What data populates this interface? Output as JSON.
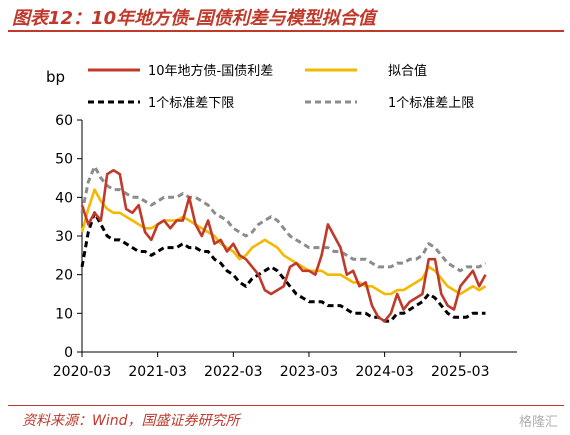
{
  "figure": {
    "title": "图表12：10年地方债-国债利差与模型拟合值",
    "source": "资料来源：Wind，国盛证券研究所",
    "watermark": "格隆汇"
  },
  "chart_data": {
    "type": "line",
    "ylabel": "bp",
    "ylim": [
      0,
      60
    ],
    "yticks": [
      0,
      10,
      20,
      30,
      40,
      50,
      60
    ],
    "xticks": [
      "2020-03",
      "2021-03",
      "2022-03",
      "2023-03",
      "2024-03",
      "2025-03"
    ],
    "xrange_index": [
      0,
      69
    ],
    "grid": false,
    "legend_position": "top",
    "series": [
      {
        "name": "10年地方债-国债利差",
        "color": "#c0392b",
        "style": "solid",
        "values": [
          38,
          33,
          36,
          34,
          46,
          47,
          46,
          37,
          36,
          38,
          31,
          29,
          33,
          34,
          32,
          34,
          34,
          40,
          33,
          30,
          34,
          28,
          29,
          26,
          28,
          25,
          24,
          22,
          20,
          16,
          15,
          16,
          17,
          22,
          23,
          21,
          21,
          20,
          25,
          33,
          30,
          27,
          20,
          21,
          17,
          18,
          12,
          9,
          8,
          10,
          15,
          11,
          13,
          14,
          15,
          24,
          24,
          15,
          12,
          11,
          17,
          19,
          21,
          17,
          20
        ],
        "x_index": [
          0,
          1,
          2,
          3,
          4,
          5,
          6,
          7,
          8,
          9,
          10,
          11,
          12,
          13,
          14,
          15,
          16,
          17,
          18,
          19,
          20,
          21,
          22,
          23,
          24,
          25,
          26,
          27,
          28,
          29,
          30,
          31,
          32,
          33,
          34,
          35,
          36,
          37,
          38,
          39,
          40,
          41,
          42,
          43,
          44,
          45,
          46,
          47,
          48,
          49,
          50,
          51,
          52,
          53,
          54,
          55,
          56,
          57,
          58,
          59,
          60,
          61,
          62,
          63,
          64
        ]
      },
      {
        "name": "拟合值",
        "color": "#f5b800",
        "style": "solid",
        "values": [
          31,
          37,
          42,
          39,
          37,
          36,
          36,
          35,
          34,
          33,
          32,
          32,
          33,
          34,
          34,
          34,
          35,
          34,
          33,
          32,
          31,
          30,
          28,
          27,
          26,
          24,
          25,
          27,
          28,
          29,
          28,
          27,
          25,
          24,
          23,
          22,
          21,
          21,
          21,
          20,
          20,
          20,
          19,
          18,
          18,
          17,
          17,
          16,
          15,
          15,
          16,
          16,
          17,
          18,
          19,
          22,
          21,
          19,
          17,
          16,
          15,
          16,
          17,
          16,
          17
        ],
        "x_index": [
          0,
          1,
          2,
          3,
          4,
          5,
          6,
          7,
          8,
          9,
          10,
          11,
          12,
          13,
          14,
          15,
          16,
          17,
          18,
          19,
          20,
          21,
          22,
          23,
          24,
          25,
          26,
          27,
          28,
          29,
          30,
          31,
          32,
          33,
          34,
          35,
          36,
          37,
          38,
          39,
          40,
          41,
          42,
          43,
          44,
          45,
          46,
          47,
          48,
          49,
          50,
          51,
          52,
          53,
          54,
          55,
          56,
          57,
          58,
          59,
          60,
          61,
          62,
          63,
          64
        ]
      },
      {
        "name": "1个标准差下限",
        "color": "#000000",
        "style": "dashed",
        "values": [
          22,
          31,
          36,
          33,
          30,
          29,
          29,
          28,
          27,
          26,
          26,
          25,
          26,
          27,
          27,
          27,
          28,
          27,
          27,
          26,
          26,
          24,
          23,
          21,
          20,
          18,
          17,
          19,
          20,
          21,
          22,
          21,
          19,
          17,
          15,
          14,
          13,
          13,
          13,
          12,
          12,
          12,
          11,
          10,
          10,
          10,
          9,
          9,
          8,
          8,
          10,
          10,
          11,
          12,
          13,
          15,
          14,
          12,
          10,
          9,
          9,
          9,
          10,
          10,
          10
        ],
        "x_index": [
          0,
          1,
          2,
          3,
          4,
          5,
          6,
          7,
          8,
          9,
          10,
          11,
          12,
          13,
          14,
          15,
          16,
          17,
          18,
          19,
          20,
          21,
          22,
          23,
          24,
          25,
          26,
          27,
          28,
          29,
          30,
          31,
          32,
          33,
          34,
          35,
          36,
          37,
          38,
          39,
          40,
          41,
          42,
          43,
          44,
          45,
          46,
          47,
          48,
          49,
          50,
          51,
          52,
          53,
          54,
          55,
          56,
          57,
          58,
          59,
          60,
          61,
          62,
          63,
          64
        ]
      },
      {
        "name": "1个标准差上限",
        "color": "#8c8c8c",
        "style": "dashed",
        "values": [
          36,
          44,
          48,
          45,
          43,
          42,
          42,
          41,
          40,
          40,
          39,
          38,
          39,
          40,
          40,
          40,
          41,
          40,
          40,
          39,
          38,
          36,
          35,
          34,
          32,
          31,
          30,
          31,
          33,
          34,
          35,
          34,
          32,
          30,
          29,
          28,
          27,
          27,
          27,
          27,
          26,
          26,
          25,
          24,
          24,
          24,
          23,
          22,
          22,
          22,
          23,
          23,
          24,
          24,
          25,
          28,
          27,
          25,
          23,
          22,
          21,
          22,
          22,
          22,
          23
        ],
        "x_index": [
          0,
          1,
          2,
          3,
          4,
          5,
          6,
          7,
          8,
          9,
          10,
          11,
          12,
          13,
          14,
          15,
          16,
          17,
          18,
          19,
          20,
          21,
          22,
          23,
          24,
          25,
          26,
          27,
          28,
          29,
          30,
          31,
          32,
          33,
          34,
          35,
          36,
          37,
          38,
          39,
          40,
          41,
          42,
          43,
          44,
          45,
          46,
          47,
          48,
          49,
          50,
          51,
          52,
          53,
          54,
          55,
          56,
          57,
          58,
          59,
          60,
          61,
          62,
          63,
          64
        ]
      }
    ]
  }
}
